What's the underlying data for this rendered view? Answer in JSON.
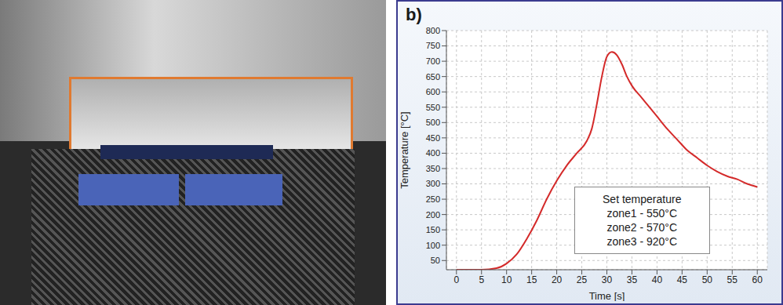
{
  "chart_data": {
    "type": "line",
    "panel_label": "b)",
    "xlabel": "Time [s]",
    "ylabel": "Temperature [°C]",
    "annotation": [
      "Set temperature",
      "zone1 - 550°C",
      "zone2 - 570°C",
      "zone3 - 920°C"
    ],
    "x": [
      0,
      5,
      8,
      10,
      12,
      14,
      16,
      18,
      20,
      22,
      24,
      26,
      27,
      28,
      29,
      30,
      31,
      32,
      33,
      34,
      35,
      37,
      38,
      40,
      42,
      44,
      46,
      48,
      50,
      52,
      54,
      56,
      58,
      60
    ],
    "values": [
      20,
      20,
      25,
      40,
      70,
      120,
      180,
      250,
      310,
      360,
      400,
      440,
      480,
      560,
      650,
      715,
      730,
      720,
      690,
      650,
      620,
      580,
      560,
      520,
      480,
      445,
      410,
      385,
      360,
      340,
      325,
      315,
      300,
      290
    ],
    "color": "#d42a2a",
    "xlim": [
      -2,
      62
    ],
    "ylim": [
      20,
      800
    ],
    "xticks": [
      0,
      5,
      10,
      15,
      20,
      25,
      30,
      35,
      40,
      45,
      50,
      55,
      60
    ],
    "yticks": [
      50,
      100,
      150,
      200,
      250,
      300,
      350,
      400,
      450,
      500,
      550,
      600,
      650,
      700,
      750,
      800
    ],
    "grid": true
  }
}
